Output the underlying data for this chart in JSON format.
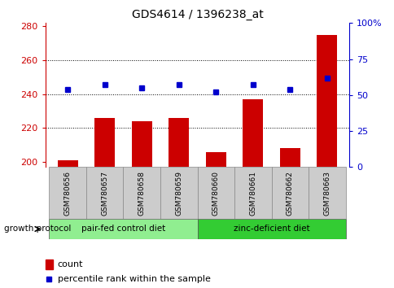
{
  "title": "GDS4614 / 1396238_at",
  "samples": [
    "GSM780656",
    "GSM780657",
    "GSM780658",
    "GSM780659",
    "GSM780660",
    "GSM780661",
    "GSM780662",
    "GSM780663"
  ],
  "bar_values": [
    201,
    226,
    224,
    226,
    206,
    237,
    208,
    275
  ],
  "percentile_values": [
    54,
    57,
    55,
    57,
    52,
    57,
    54,
    62
  ],
  "bar_color": "#cc0000",
  "marker_color": "#0000cc",
  "ylim_left": [
    197,
    282
  ],
  "ylim_right": [
    0,
    100
  ],
  "yticks_left": [
    200,
    220,
    240,
    260,
    280
  ],
  "yticks_right": [
    0,
    25,
    50,
    75,
    100
  ],
  "ytick_labels_right": [
    "0",
    "25",
    "50",
    "75",
    "100%"
  ],
  "group1_label": "pair-fed control diet",
  "group2_label": "zinc-deficient diet",
  "group_protocol_label": "growth protocol",
  "legend_count": "count",
  "legend_percentile": "percentile rank within the sample",
  "group1_color": "#90ee90",
  "group2_color": "#33cc33",
  "group_bg_color": "#cccccc",
  "title_color": "#000000",
  "left_axis_color": "#cc0000",
  "right_axis_color": "#0000cc",
  "grid_lines": [
    220,
    240,
    260
  ],
  "n_group1": 4,
  "n_group2": 4
}
